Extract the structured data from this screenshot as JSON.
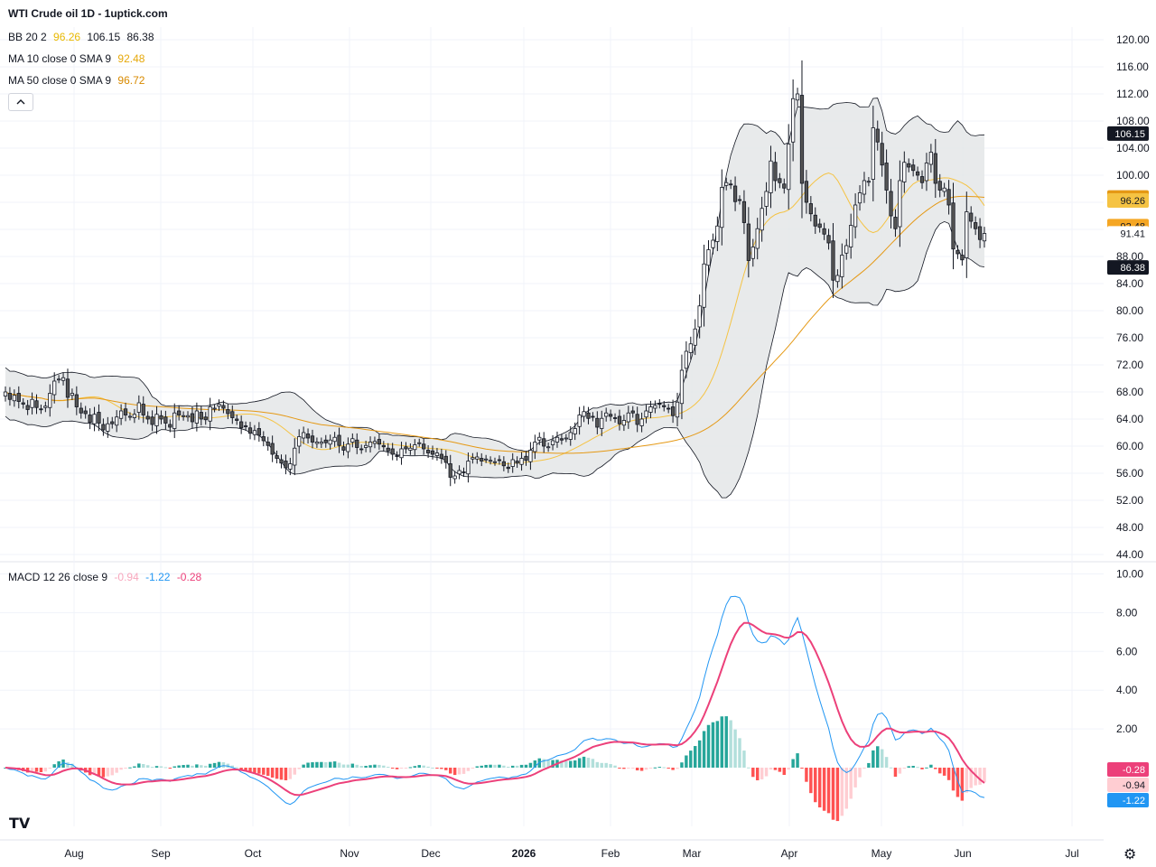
{
  "header": {
    "title": "WTI Crude oil  1D - 1uptick.com"
  },
  "legends": {
    "bb": {
      "label": "BB 20 2",
      "basis": "96.26",
      "upper": "106.15",
      "lower": "86.38"
    },
    "ma10": {
      "label": "MA 10 close 0 SMA 9",
      "value": "92.48"
    },
    "ma50": {
      "label": "MA 50 close 0 SMA 9",
      "value": "96.72"
    },
    "macd": {
      "label": "MACD 12 26 close 9",
      "signal": "-0.94",
      "macd": "-1.22",
      "hist": "-0.28"
    }
  },
  "colors": {
    "up": "#ffffff",
    "down": "#555555",
    "wick": "#131722",
    "bb_fill": "#e4e6e8",
    "bb_line": "#131722",
    "ma10": "#f5c343",
    "ma50": "#e59915",
    "macd_line": "#2196f3",
    "signal_line": "#ec407a",
    "hist_up_strong": "#26a69a",
    "hist_up_weak": "#b2dfdb",
    "hist_down_strong": "#ff5252",
    "hist_down_weak": "#ffcdd2"
  },
  "icons": {
    "collapse": "chevron-up-icon",
    "logo": "tradingview-logo-icon",
    "settings": "gear-icon"
  },
  "logo_text": "TV",
  "chart_data": [
    {
      "type": "candlestick",
      "title": "WTI Crude oil  1D - 1uptick.com",
      "x_labels": [
        "Aug",
        "Sep",
        "Oct",
        "Nov",
        "Dec",
        "2026",
        "Feb",
        "Mar",
        "Apr",
        "May",
        "Jun",
        "Jul"
      ],
      "y_ticks": [
        44,
        48,
        52,
        56,
        60,
        64,
        68,
        72,
        76,
        80,
        84,
        88,
        92,
        96,
        100,
        104,
        108,
        112,
        116,
        120
      ],
      "ylim": [
        43,
        121
      ],
      "closes": [
        68.0,
        66.9,
        67.5,
        66.6,
        66.2,
        65.4,
        66.9,
        65.7,
        65.4,
        65.9,
        67.8,
        69.6,
        69.9,
        70.1,
        67.2,
        67.8,
        65.8,
        64.9,
        64.8,
        63.5,
        64.7,
        63.4,
        62.4,
        63.3,
        63.3,
        64.3,
        65.2,
        64.6,
        64.4,
        64.7,
        66.4,
        64.6,
        64.0,
        63.2,
        64.7,
        64.0,
        63.4,
        62.8,
        64.9,
        64.6,
        64.5,
        64.5,
        63.6,
        65.2,
        64.0,
        63.9,
        65.8,
        65.6,
        66.2,
        65.6,
        64.8,
        64.2,
        63.8,
        62.7,
        62.9,
        61.9,
        62.3,
        61.6,
        60.8,
        60.1,
        58.8,
        58.2,
        57.5,
        56.8,
        57.4,
        59.7,
        61.4,
        62.0,
        61.2,
        60.6,
        60.6,
        60.6,
        60.5,
        60.9,
        61.3,
        60.1,
        59.4,
        60.3,
        61.1,
        59.8,
        59.5,
        60.1,
        60.6,
        60.7,
        60.3,
        59.9,
        59.3,
        58.8,
        58.5,
        59.6,
        59.6,
        59.7,
        60.2,
        60.5,
        59.6,
        59.0,
        58.8,
        59.0,
        58.2,
        57.6,
        55.4,
        55.6,
        56.4,
        56.1,
        57.8,
        58.3,
        58.4,
        57.8,
        58.1,
        57.9,
        57.7,
        57.9,
        57.1,
        56.7,
        58.0,
        57.5,
        58.2,
        57.9,
        59.4,
        60.6,
        61.3,
        60.0,
        59.9,
        60.8,
        61.3,
        60.9,
        61.2,
        62.0,
        62.6,
        64.6,
        65.1,
        64.1,
        64.3,
        62.8,
        64.1,
        64.9,
        64.4,
        64.1,
        63.3,
        63.8,
        64.9,
        64.9,
        63.2,
        64.0,
        65.2,
        65.8,
        66.0,
        66.2,
        65.8,
        65.5,
        64.5,
        66.5,
        71.2,
        74.0,
        75.1,
        77.3,
        80.7,
        86.9,
        89.0,
        90.4,
        92.5,
        98.2,
        98.9,
        98.6,
        96.1,
        96.3,
        93.0,
        87.4,
        89.4,
        92.1,
        95.1,
        97.6,
        102.1,
        99.2,
        98.9,
        98.1,
        104.6,
        111.3,
        112.0,
        98.8,
        96.0,
        94.3,
        92.5,
        92.3,
        91.3,
        90.0,
        84.5,
        85.2,
        88.2,
        89.6,
        92.6,
        95.6,
        97.4,
        99.2,
        99.1,
        107.0,
        104.9,
        101.5,
        97.8,
        94.0,
        92.1,
        99.2,
        101.9,
        101.2,
        100.7,
        100.0,
        98.9,
        101.8,
        103.4,
        98.8,
        97.8,
        98.1,
        95.6,
        89.1,
        88.4,
        87.5,
        94.6,
        93.2,
        92.1,
        90.5,
        91.4
      ],
      "y_tags": [
        "106.15",
        "96.72",
        "96.26",
        "92.48",
        "91.41",
        "86.38"
      ]
    },
    {
      "type": "line",
      "title": "MACD 12 26 close 9",
      "y_ticks": [
        2,
        4,
        6,
        8,
        10
      ],
      "ylim": [
        -2.0,
        10.2
      ],
      "series": [
        "MACD",
        "Signal",
        "Histogram"
      ],
      "last_values": {
        "macd": -1.22,
        "signal": -0.94,
        "hist": -0.28
      },
      "y_tags": [
        "-0.28",
        "-0.94",
        "-1.22"
      ]
    }
  ]
}
